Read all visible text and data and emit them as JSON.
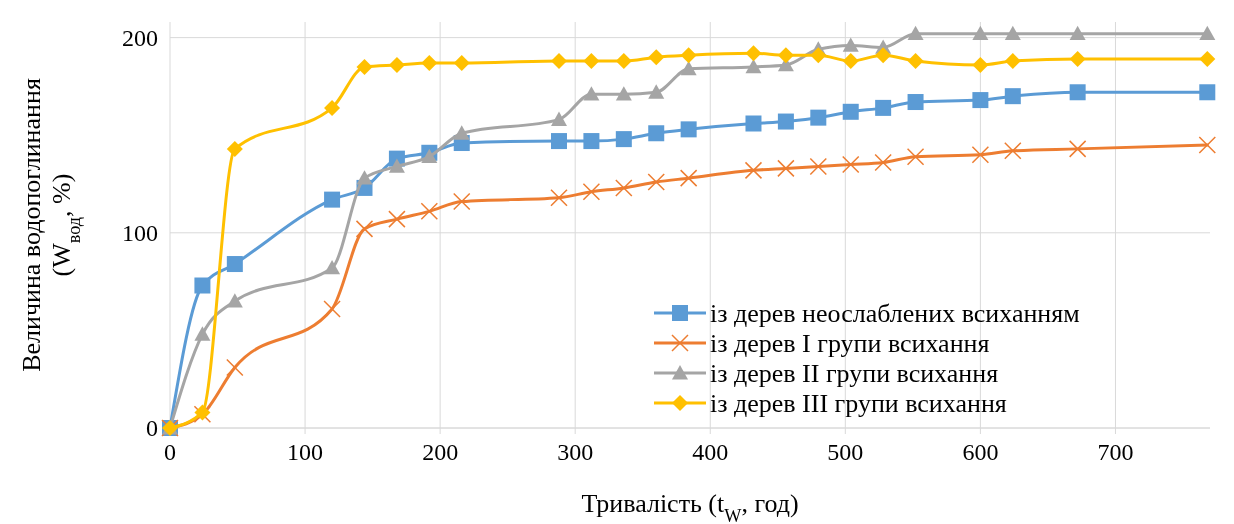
{
  "chart_data": {
    "type": "line",
    "xlabel": "Тривалість (t$_{W}$, год)",
    "ylabel": "Величина водопоглинання\n(W$_{вод}$, %)",
    "x": [
      0,
      24,
      48,
      120,
      144,
      168,
      192,
      216,
      288,
      312,
      336,
      360,
      384,
      432,
      456,
      480,
      504,
      528,
      552,
      600,
      624,
      672,
      768
    ],
    "xlim": [
      0,
      770
    ],
    "xticks": [
      0,
      100,
      200,
      300,
      400,
      500,
      600,
      700
    ],
    "ylim": [
      0,
      208
    ],
    "yticks": [
      0,
      100,
      200
    ],
    "grid": true,
    "legend": "bottom right",
    "series": [
      {
        "name": "із дерев неослаблених всиханням",
        "color": "#5b9bd5",
        "marker": "square",
        "values": [
          0,
          73,
          84,
          117,
          123,
          138,
          141,
          146,
          147,
          147,
          148,
          151,
          153,
          156,
          157,
          159,
          162,
          164,
          167,
          168,
          170,
          172,
          172
        ]
      },
      {
        "name": "із дерев I групи всихання",
        "color": "#ed7d31",
        "marker": "cross",
        "values": [
          0,
          7,
          31,
          61,
          102,
          107,
          111,
          116,
          118,
          121,
          123,
          126,
          128,
          132,
          133,
          134,
          135,
          136,
          139,
          140,
          142,
          143,
          145
        ]
      },
      {
        "name": "із дерев II групи всихання",
        "color": "#a5a5a5",
        "marker": "triangle",
        "values": [
          0,
          48,
          65,
          82,
          128,
          134,
          139,
          151,
          158,
          171,
          171,
          172,
          184,
          185,
          186,
          194,
          196,
          195,
          202,
          202,
          202,
          202,
          202
        ]
      },
      {
        "name": "із дерев III групи всихання",
        "color": "#ffc000",
        "marker": "diamond",
        "values": [
          0,
          8,
          143,
          164,
          185,
          186,
          187,
          187,
          188,
          188,
          188,
          190,
          191,
          192,
          191,
          191,
          188,
          191,
          188,
          186,
          188,
          189,
          189
        ]
      }
    ]
  }
}
